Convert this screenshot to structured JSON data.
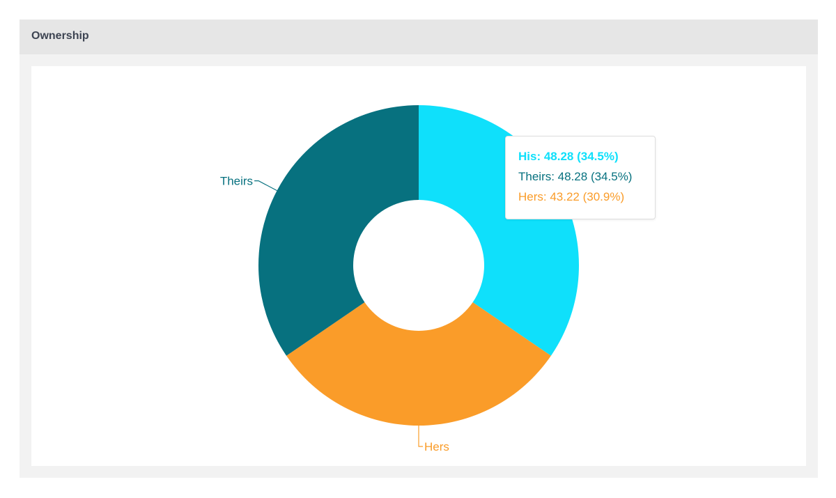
{
  "panel": {
    "title": "Ownership"
  },
  "chart_data": {
    "type": "pie",
    "variant": "donut",
    "title": "",
    "categories": [
      "His",
      "Hers",
      "Theirs"
    ],
    "values": [
      48.28,
      43.22,
      48.28
    ],
    "percentages": [
      "34.5%",
      "30.9%",
      "34.5%"
    ],
    "colors": [
      "#0fe0fb",
      "#fa9c29",
      "#07717f"
    ],
    "legend": "none"
  },
  "tooltip": {
    "items": [
      {
        "text": "His: 48.28 (34.5%)",
        "color": "#0fe0fb"
      },
      {
        "text": "Theirs: 48.28 (34.5%)",
        "color": "#07717f"
      },
      {
        "text": "Hers: 43.22 (30.9%)",
        "color": "#fa9c29"
      }
    ]
  }
}
